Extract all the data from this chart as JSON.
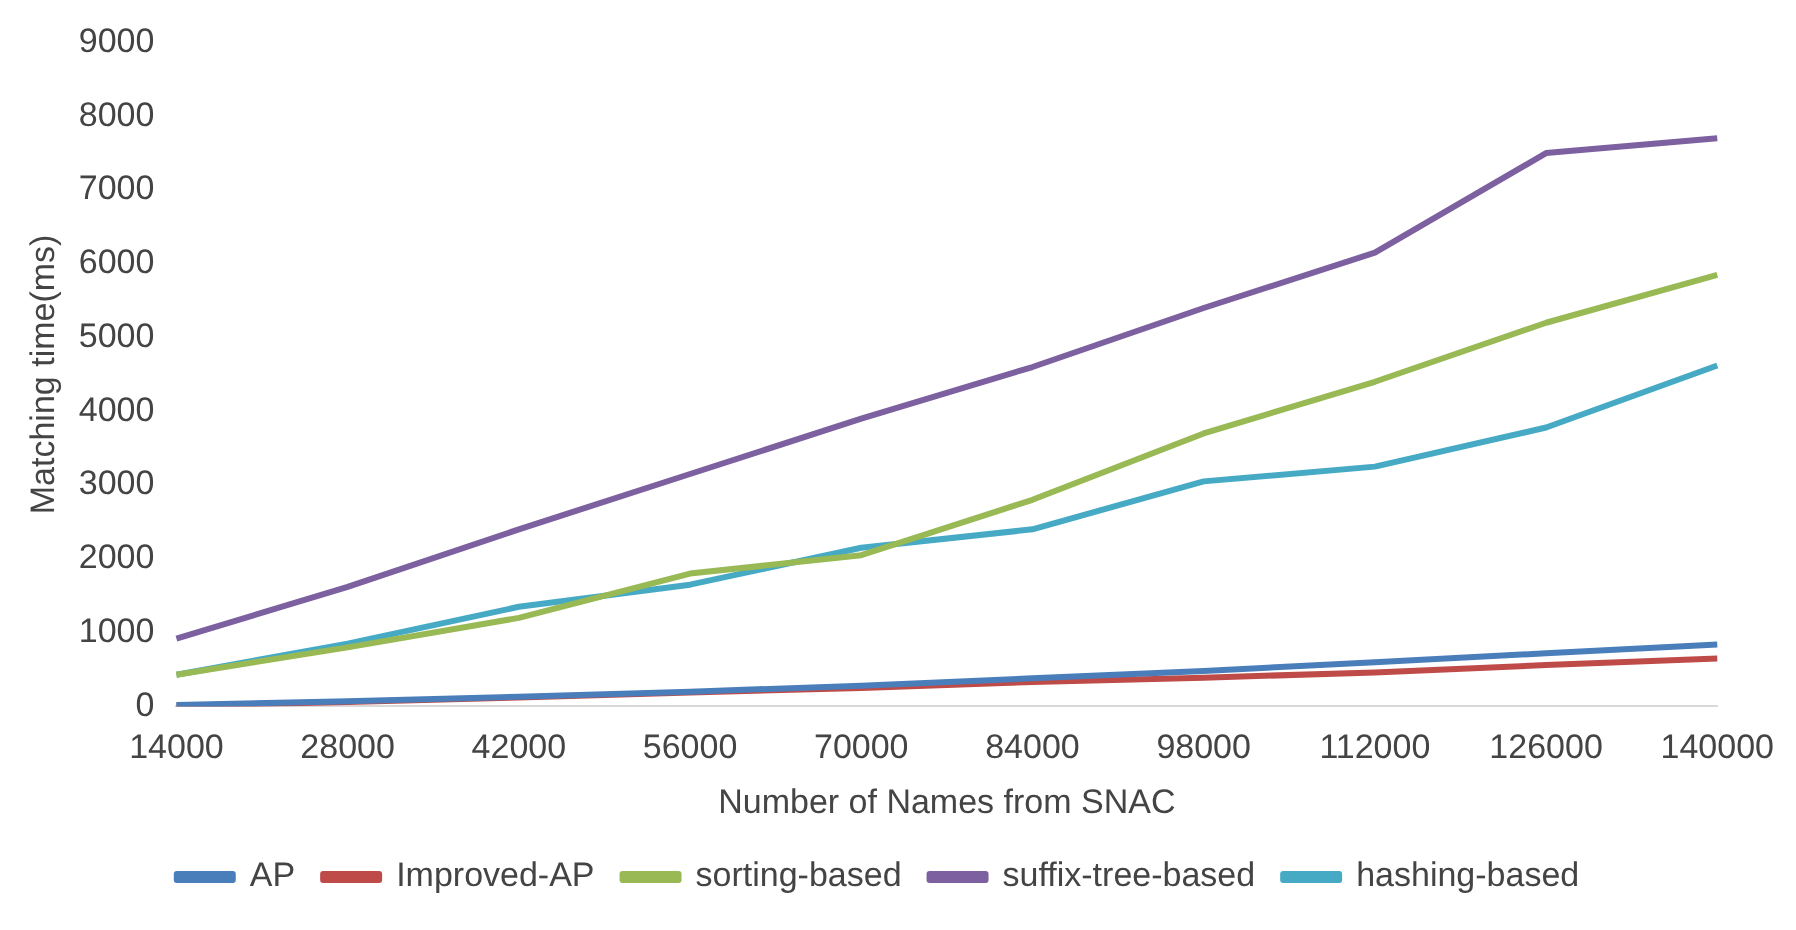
{
  "chart_data": {
    "type": "line",
    "xlabel": "Number of Names from SNAC",
    "ylabel": "Matching time(ms)",
    "categories": [
      "14000",
      "28000",
      "42000",
      "56000",
      "70000",
      "84000",
      "98000",
      "112000",
      "126000",
      "140000"
    ],
    "series": [
      {
        "name": "AP",
        "color": "#4a7ebb",
        "values": [
          20,
          70,
          130,
          200,
          280,
          380,
          480,
          600,
          720,
          840
        ]
      },
      {
        "name": "Improved-AP",
        "color": "#be4b48",
        "values": [
          10,
          60,
          120,
          190,
          250,
          330,
          390,
          460,
          560,
          650
        ]
      },
      {
        "name": "sorting-based",
        "color": "#98b954",
        "values": [
          430,
          800,
          1200,
          1800,
          2050,
          2800,
          3700,
          4400,
          5200,
          5850
        ]
      },
      {
        "name": "suffix-tree-based",
        "color": "#7d60a0",
        "values": [
          920,
          1620,
          2400,
          3150,
          3900,
          4600,
          5400,
          6150,
          7500,
          7700
        ]
      },
      {
        "name": "hashing-based",
        "color": "#46aac5",
        "values": [
          430,
          850,
          1350,
          1650,
          2150,
          2400,
          3050,
          3250,
          3780,
          4620
        ]
      }
    ],
    "ylim": [
      0,
      9000
    ],
    "yticks": [
      0,
      1000,
      2000,
      3000,
      4000,
      5000,
      6000,
      7000,
      8000,
      9000
    ],
    "grid": false,
    "legend": "bottom",
    "marker": "none",
    "line_style": "solid"
  }
}
